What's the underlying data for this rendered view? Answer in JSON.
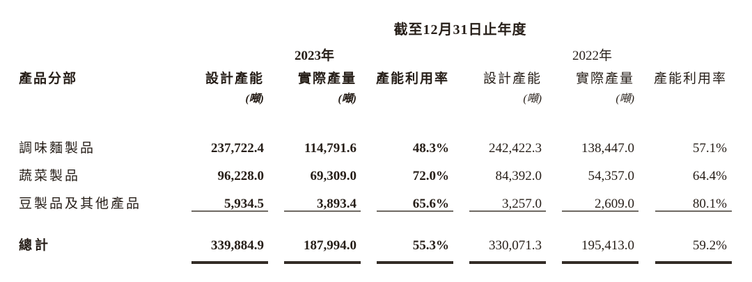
{
  "page": {
    "background_color": "#ffffff",
    "text_color": "#261e18",
    "thin_rule_color": "#6e6862",
    "thick_rule_color": "#332c26"
  },
  "table": {
    "group_title": "截至12月31日止年度",
    "year_groups": [
      {
        "label": "2023年"
      },
      {
        "label": "2022年"
      }
    ],
    "row_header": "產品分部",
    "columns": [
      "設計產能",
      "實際產量",
      "產能利用率",
      "設計產能",
      "實際產量",
      "產能利用率"
    ],
    "units": [
      "(噸)",
      "(噸)",
      "",
      "(噸)",
      "(噸)",
      ""
    ],
    "rows": [
      {
        "label": "調味麵製品",
        "values": [
          "237,722.4",
          "114,791.6",
          "48.3%",
          "242,422.3",
          "138,447.0",
          "57.1%"
        ]
      },
      {
        "label": "蔬菜製品",
        "values": [
          "96,228.0",
          "69,309.0",
          "72.0%",
          "84,392.0",
          "54,357.0",
          "64.4%"
        ]
      },
      {
        "label": "豆製品及其他產品",
        "values": [
          "5,934.5",
          "3,893.4",
          "65.6%",
          "3,257.0",
          "2,609.0",
          "80.1%"
        ]
      }
    ],
    "total": {
      "label": "總計",
      "values": [
        "339,884.9",
        "187,994.0",
        "55.3%",
        "330,071.3",
        "195,413.0",
        "59.2%"
      ]
    }
  }
}
